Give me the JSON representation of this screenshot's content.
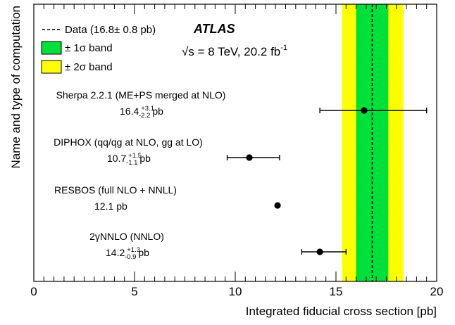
{
  "chart_data": {
    "type": "scatter",
    "xlabel": "Integrated fiducial cross section [pb]",
    "ylabel": "Name and type of computation",
    "xlim": [
      0,
      20
    ],
    "xticks": [
      "0",
      "5",
      "10",
      "15",
      "20"
    ],
    "data": {
      "value": 16.8,
      "uncertainty": 0.8,
      "band_1sigma": [
        16.0,
        17.6
      ],
      "band_2sigma": [
        15.3,
        18.35
      ],
      "colors": {
        "band_1sigma": "#00e03a",
        "band_2sigma": "#ffff00"
      }
    },
    "series": [
      {
        "name": "Sherpa 2.2.1 (ME+PS merged at NLO)",
        "central": "16.4",
        "err_up": "+3.1",
        "err_down": "-2.2",
        "unit": "pb",
        "value": 16.4,
        "low": 14.2,
        "high": 19.5
      },
      {
        "name": "DIPHOX (qq/qg at NLO, gg at LO)",
        "central": "10.7",
        "err_up": "+1.5",
        "err_down": "-1.1",
        "unit": "pb",
        "value": 10.7,
        "low": 9.6,
        "high": 12.2
      },
      {
        "name": "RESBOS (full NLO + NNLL)",
        "central": "12.1",
        "err_up": "",
        "err_down": "",
        "unit": "pb",
        "value": 12.1,
        "low": 12.1,
        "high": 12.1
      },
      {
        "name": "2γNNLO (NNLO)",
        "central": "14.2",
        "err_up": "+1.3",
        "err_down": "-0.9",
        "unit": "pb",
        "value": 14.2,
        "low": 13.3,
        "high": 15.5
      }
    ],
    "legend": {
      "data_label": "Data (16.8± 0.8 pb)",
      "one_sigma_label": "± 1σ band",
      "two_sigma_label": "± 2σ band"
    },
    "annotations": {
      "experiment": "ATLAS",
      "energy_prefix": "√s = 8 TeV, 20.2 fb",
      "energy_sup": "-1"
    }
  }
}
